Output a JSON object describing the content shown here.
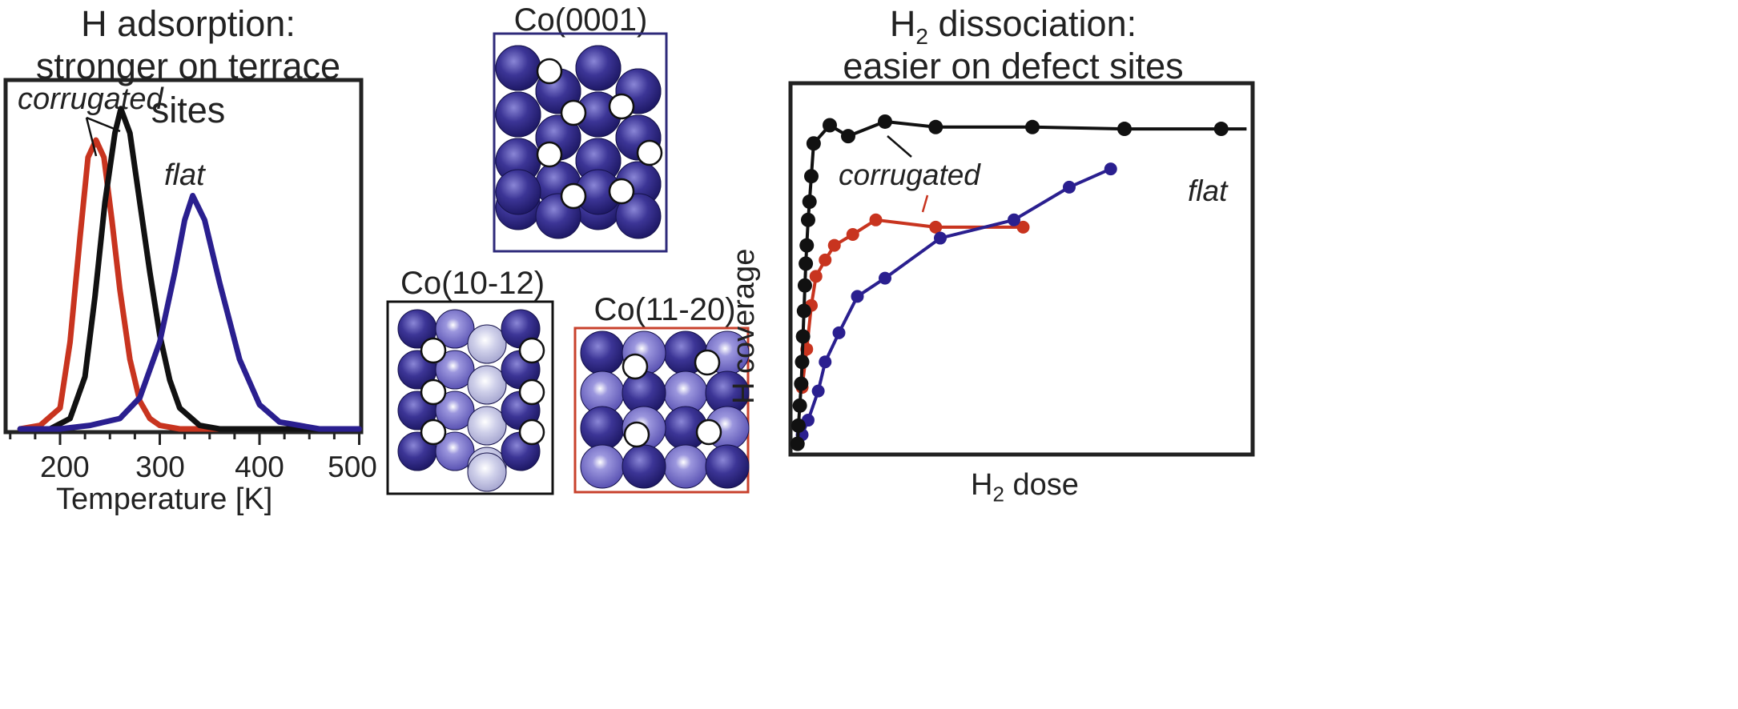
{
  "left_panel": {
    "title_line1": "H adsorption:",
    "title_line2": "stronger on terrace sites",
    "xlabel": "Temperature [K]",
    "xticks": [
      "200",
      "300",
      "400",
      "500"
    ],
    "annotations": {
      "corrugated": "corrugated",
      "flat": "flat"
    }
  },
  "middle_panel": {
    "top_label": "Co(0001)",
    "bottom_left_label": "Co(10-12)",
    "bottom_right_label": "Co(11-20)",
    "frame_colors": {
      "co0001": "#2e2a7a",
      "co1012": "#111111",
      "co1120": "#c8412c"
    }
  },
  "right_panel": {
    "title_line1_pre": "H",
    "title_line1_sub": "2",
    "title_line1_post": " dissociation:",
    "title_line2": "easier on defect sites",
    "ylabel": "H coverage",
    "xlabel_pre": "H",
    "xlabel_sub": "2",
    "xlabel_post": " dose",
    "annotations": {
      "corrugated": "corrugated",
      "flat": "flat"
    }
  },
  "colors": {
    "black": "#111111",
    "red": "#c8341f",
    "blue": "#2a1f8f"
  },
  "chart_data": [
    {
      "type": "line",
      "title": "H adsorption: stronger on terrace sites",
      "xlabel": "Temperature [K]",
      "ylabel": "",
      "xlim": [
        150,
        500
      ],
      "ylim": [
        0,
        1
      ],
      "series": [
        {
          "color": "#c8341f",
          "x": [
            160,
            180,
            200,
            210,
            220,
            228,
            236,
            244,
            252,
            260,
            270,
            280,
            290,
            300,
            320,
            350,
            400,
            500
          ],
          "y": [
            0.0,
            0.01,
            0.06,
            0.25,
            0.55,
            0.78,
            0.83,
            0.78,
            0.6,
            0.4,
            0.2,
            0.08,
            0.03,
            0.01,
            0.0,
            0.0,
            0.0,
            0.0
          ]
        },
        {
          "color": "#111111",
          "x": [
            160,
            190,
            210,
            225,
            235,
            245,
            255,
            261,
            270,
            280,
            290,
            300,
            310,
            320,
            340,
            360,
            400,
            500
          ],
          "y": [
            0.0,
            0.0,
            0.03,
            0.15,
            0.38,
            0.65,
            0.85,
            0.92,
            0.85,
            0.65,
            0.45,
            0.27,
            0.14,
            0.06,
            0.01,
            0.0,
            0.0,
            0.0
          ]
        },
        {
          "color": "#2a1f8f",
          "x": [
            160,
            200,
            230,
            260,
            280,
            300,
            315,
            325,
            333,
            345,
            360,
            380,
            400,
            420,
            440,
            460,
            500
          ],
          "y": [
            0.0,
            0.0,
            0.01,
            0.03,
            0.09,
            0.25,
            0.45,
            0.6,
            0.67,
            0.6,
            0.42,
            0.2,
            0.07,
            0.02,
            0.01,
            0.0,
            0.0
          ]
        }
      ]
    },
    {
      "type": "line",
      "title": "H2 dissociation: easier on defect sites",
      "xlabel": "H2 dose",
      "ylabel": "H coverage",
      "xlim": [
        0,
        1
      ],
      "ylim": [
        0,
        1
      ],
      "series": [
        {
          "color": "#111111",
          "x": [
            0.01,
            0.012,
            0.015,
            0.018,
            0.02,
            0.022,
            0.024,
            0.026,
            0.028,
            0.03,
            0.033,
            0.036,
            0.04,
            0.045,
            0.08,
            0.12,
            0.2,
            0.31,
            0.52,
            0.72,
            0.93,
            0.985
          ],
          "y": [
            0.025,
            0.075,
            0.13,
            0.19,
            0.25,
            0.32,
            0.39,
            0.46,
            0.52,
            0.57,
            0.64,
            0.69,
            0.76,
            0.85,
            0.9,
            0.87,
            0.91,
            0.895,
            0.895,
            0.89,
            0.89,
            0.89
          ]
        },
        {
          "color": "#c8341f",
          "x": [
            0.02,
            0.03,
            0.04,
            0.05,
            0.07,
            0.09,
            0.13,
            0.18,
            0.31,
            0.5
          ],
          "y": [
            0.18,
            0.285,
            0.405,
            0.485,
            0.53,
            0.57,
            0.6,
            0.64,
            0.62,
            0.62
          ]
        },
        {
          "color": "#2a1f8f",
          "x": [
            0.02,
            0.033,
            0.055,
            0.07,
            0.1,
            0.14,
            0.2,
            0.32,
            0.48,
            0.6,
            0.69
          ],
          "y": [
            0.05,
            0.09,
            0.17,
            0.25,
            0.33,
            0.43,
            0.48,
            0.59,
            0.64,
            0.73,
            0.78
          ]
        }
      ]
    }
  ]
}
